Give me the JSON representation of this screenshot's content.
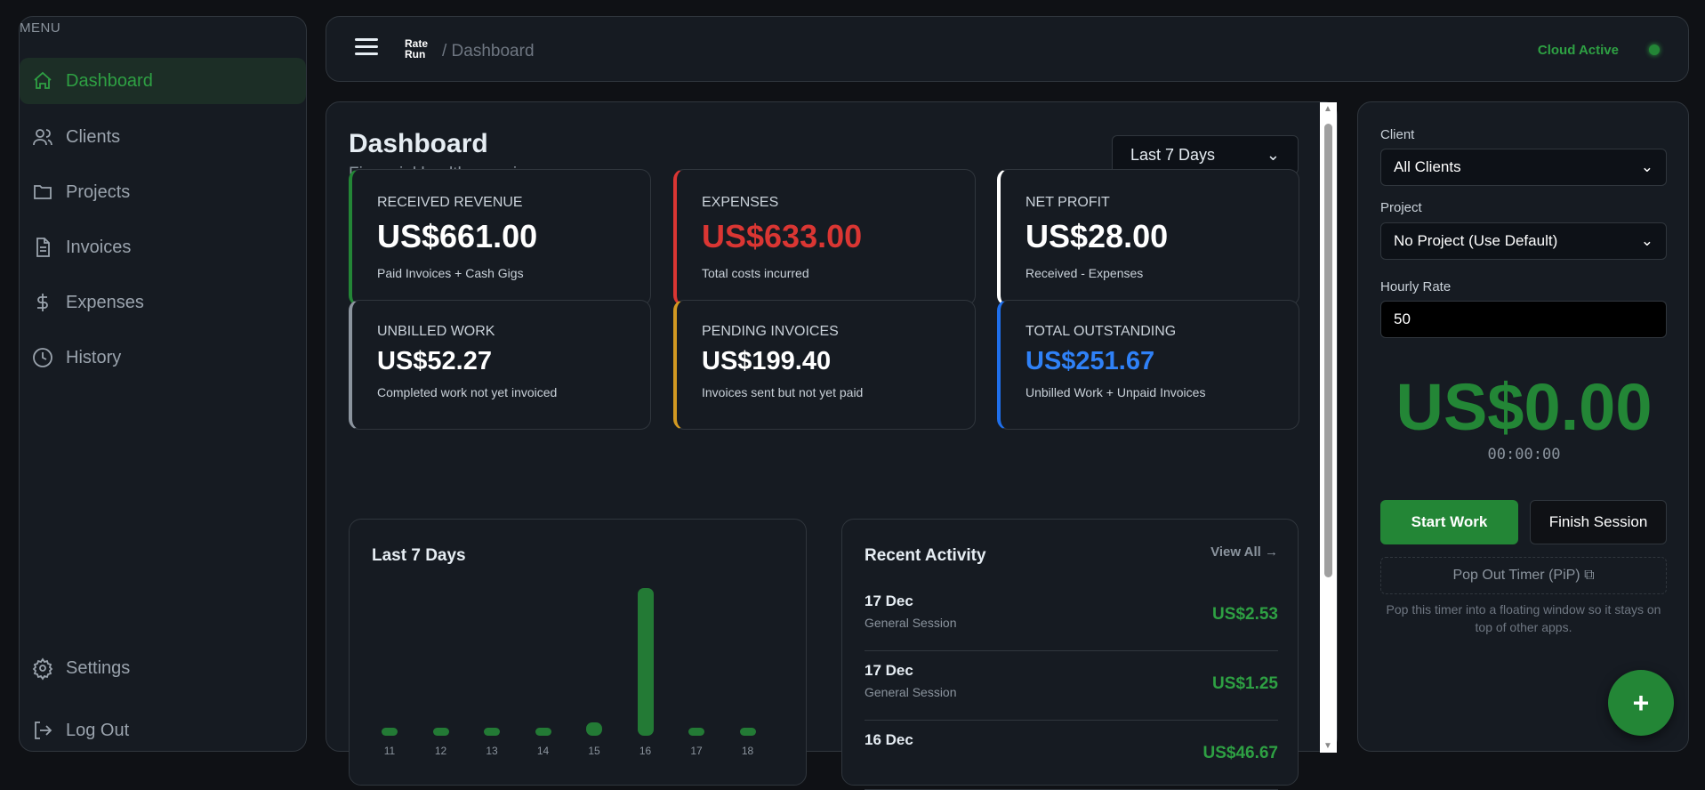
{
  "sidebar": {
    "menu_label": "MENU",
    "items": [
      {
        "label": "Dashboard",
        "icon": "home-icon",
        "active": true
      },
      {
        "label": "Clients",
        "icon": "users-icon"
      },
      {
        "label": "Projects",
        "icon": "folder-icon"
      },
      {
        "label": "Invoices",
        "icon": "document-icon"
      },
      {
        "label": "Expenses",
        "icon": "dollar-icon"
      },
      {
        "label": "History",
        "icon": "clock-icon"
      }
    ],
    "settings": "Settings",
    "logout": "Log Out"
  },
  "header": {
    "logo": "Rate Run",
    "breadcrumb": "/ Dashboard",
    "status": "Cloud Active"
  },
  "main": {
    "title": "Dashboard",
    "subtitle": "Financial health overview.",
    "range": "Last 7 Days",
    "cards": [
      {
        "label": "RECEIVED REVENUE",
        "value": "US$661.00",
        "note": "Paid Invoices + Cash Gigs",
        "accent": "#238636",
        "color": "#ffffff"
      },
      {
        "label": "EXPENSES",
        "value": "US$633.00",
        "note": "Total costs incurred",
        "accent": "#da3633",
        "color": "#da3633"
      },
      {
        "label": "NET PROFIT",
        "value": "US$28.00",
        "note": "Received - Expenses",
        "accent": "#ffffff",
        "color": "#ffffff"
      },
      {
        "label": "UNBILLED WORK",
        "value": "US$52.27",
        "note": "Completed work not yet invoiced",
        "accent": "#8b949e",
        "color": "#ffffff"
      },
      {
        "label": "PENDING INVOICES",
        "value": "US$199.40",
        "note": "Invoices sent but not yet paid",
        "accent": "#d29922",
        "color": "#ffffff"
      },
      {
        "label": "TOTAL OUTSTANDING",
        "value": "US$251.67",
        "note": "Unbilled Work + Unpaid Invoices",
        "accent": "#1f6feb",
        "color": "#2f81f7"
      }
    ],
    "recent": {
      "title": "Recent Activity",
      "view_all": "View All →",
      "items": [
        {
          "date": "17 Dec",
          "desc": "General Session",
          "amount": "US$2.53"
        },
        {
          "date": "17 Dec",
          "desc": "General Session",
          "amount": "US$1.25"
        },
        {
          "date": "16 Dec",
          "desc": "",
          "amount": "US$46.67"
        }
      ]
    }
  },
  "chart_data": {
    "type": "bar",
    "title": "Last 7 Days",
    "categories": [
      "11",
      "12",
      "13",
      "14",
      "15",
      "16",
      "17",
      "18"
    ],
    "values": [
      0,
      0,
      0,
      0,
      9,
      100,
      0,
      0
    ],
    "color": "#237a35",
    "grid": false
  },
  "timer": {
    "client_label": "Client",
    "client_value": "All Clients",
    "project_label": "Project",
    "project_value": "No Project (Use Default)",
    "rate_label": "Hourly Rate",
    "rate_value": "50",
    "amount": "US$0.00",
    "elapsed": "00:00:00",
    "start": "Start Work",
    "finish": "Finish Session",
    "pip": "Pop Out Timer (PiP) ⧉",
    "help": "Pop this timer into a floating window so it stays on top of other apps.",
    "fab": "+"
  }
}
